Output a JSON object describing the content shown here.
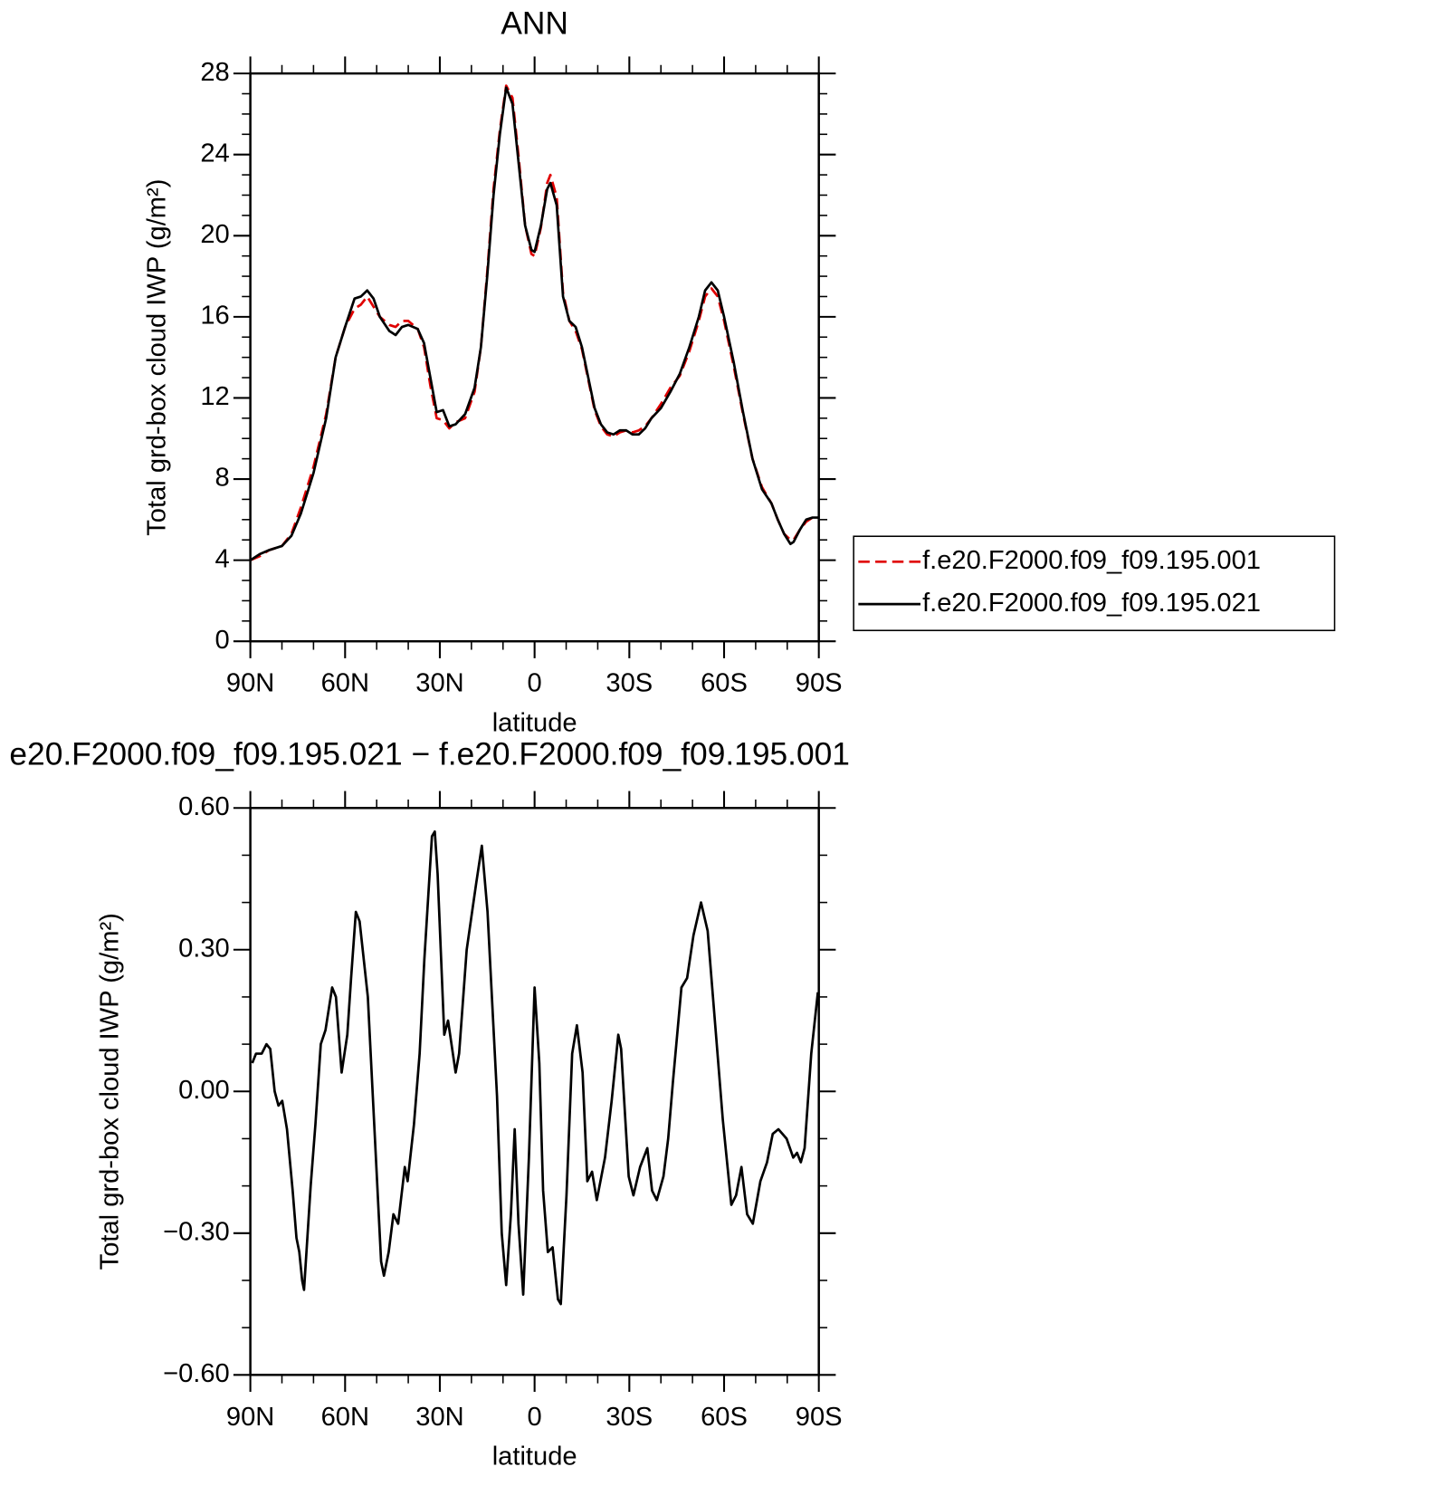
{
  "chart_data": [
    {
      "type": "line",
      "title": "ANN",
      "xlabel": "latitude",
      "ylabel": "Total grd-box cloud IWP (g/m²)",
      "x": [
        90,
        87,
        84,
        80,
        77,
        74,
        70,
        66,
        63,
        60,
        57,
        55,
        53,
        51,
        49,
        46,
        44,
        42,
        40,
        37,
        35,
        33,
        31,
        29,
        27,
        25,
        22,
        19,
        17,
        15,
        13,
        11,
        9,
        7,
        5,
        3,
        1,
        0,
        -2,
        -4,
        -5,
        -7,
        -9,
        -11,
        -13,
        -15,
        -17,
        -19,
        -21,
        -23,
        -25,
        -27,
        -29,
        -31,
        -33,
        -35,
        -37,
        -40,
        -43,
        -46,
        -49,
        -52,
        -54,
        -56,
        -58,
        -60,
        -63,
        -66,
        -69,
        -72,
        -75,
        -77,
        -79,
        -81,
        -82,
        -84,
        -86,
        -88,
        -90
      ],
      "series": [
        {
          "name": "f.e20.F2000.f09_f09.195.001",
          "color": "#e00000",
          "style": "dashed",
          "values": [
            4.0,
            4.2,
            4.5,
            4.7,
            5.3,
            6.6,
            8.6,
            11.2,
            14.0,
            15.5,
            16.4,
            16.6,
            17.0,
            16.5,
            16.0,
            15.6,
            15.5,
            15.8,
            15.8,
            15.4,
            14.5,
            12.6,
            11.0,
            10.9,
            10.5,
            10.8,
            11.0,
            12.3,
            14.5,
            18.2,
            22.3,
            25.2,
            27.4,
            26.8,
            23.8,
            20.5,
            19.1,
            19.0,
            20.4,
            22.6,
            23.0,
            21.9,
            17.2,
            15.8,
            15.3,
            14.4,
            12.9,
            11.4,
            10.6,
            10.2,
            10.1,
            10.3,
            10.4,
            10.3,
            10.4,
            10.6,
            11.0,
            11.7,
            12.5,
            13.1,
            14.3,
            15.8,
            17.0,
            17.4,
            17.0,
            15.8,
            13.6,
            11.2,
            9.0,
            7.6,
            6.8,
            6.0,
            5.3,
            5.0,
            5.0,
            5.5,
            5.9,
            6.1,
            6.1
          ]
        },
        {
          "name": "f.e20.F2000.f09_f09.195.021",
          "color": "#000000",
          "style": "solid",
          "values": [
            4.0,
            4.3,
            4.5,
            4.7,
            5.2,
            6.3,
            8.3,
            11.0,
            14.0,
            15.5,
            16.9,
            17.0,
            17.3,
            16.9,
            16.0,
            15.3,
            15.1,
            15.5,
            15.6,
            15.4,
            14.7,
            13.0,
            11.3,
            11.4,
            10.6,
            10.7,
            11.2,
            12.5,
            14.5,
            18.0,
            22.0,
            25.0,
            27.3,
            26.5,
            23.5,
            20.5,
            19.3,
            19.2,
            20.5,
            22.3,
            22.6,
            21.5,
            17.0,
            15.8,
            15.5,
            14.5,
            13.0,
            11.5,
            10.7,
            10.3,
            10.2,
            10.4,
            10.4,
            10.2,
            10.2,
            10.5,
            11.0,
            11.5,
            12.3,
            13.2,
            14.5,
            16.0,
            17.3,
            17.7,
            17.3,
            16.0,
            13.8,
            11.3,
            9.0,
            7.5,
            6.8,
            6.0,
            5.3,
            4.8,
            4.9,
            5.5,
            6.0,
            6.1,
            6.1
          ]
        }
      ],
      "xlim": [
        90,
        -90
      ],
      "xticks": [
        {
          "value": 90,
          "label": "90N"
        },
        {
          "value": 60,
          "label": "60N"
        },
        {
          "value": 30,
          "label": "30N"
        },
        0,
        {
          "value": -30,
          "label": "30S"
        },
        {
          "value": -60,
          "label": "60S"
        },
        {
          "value": -90,
          "label": "90S"
        }
      ],
      "ylim": [
        0,
        28
      ],
      "yticks": [
        0,
        4,
        8,
        12,
        16,
        20,
        24,
        28
      ],
      "legend": "right"
    },
    {
      "type": "line",
      "title": "e20.F2000.f09_f09.195.021 − f.e20.F2000.f09_f09.195.001",
      "xlabel": "latitude",
      "ylabel": "Total grd-box cloud IWP (g/m²)",
      "x": [
        89.4,
        88.2,
        86.4,
        84.9,
        83.7,
        82.3,
        81.1,
        79.9,
        78.4,
        76.6,
        75.4,
        74.5,
        73.6,
        73.0,
        70.9,
        69.4,
        67.7,
        66.2,
        64.1,
        62.9,
        61.1,
        59.3,
        58.1,
        56.6,
        55.4,
        52.8,
        50.1,
        48.6,
        47.7,
        46.2,
        44.7,
        43.2,
        41.1,
        40.2,
        38.2,
        36.4,
        34.9,
        32.5,
        31.6,
        30.7,
        28.6,
        27.4,
        25.0,
        23.9,
        21.5,
        20.0,
        18.5,
        16.7,
        14.9,
        11.9,
        10.4,
        9.0,
        7.5,
        6.3,
        5.1,
        3.6,
        1.8,
        0,
        -1.5,
        -2.7,
        -4.2,
        -5.7,
        -7.4,
        -8.3,
        -10.1,
        -11.9,
        -13.4,
        -15.2,
        -16.7,
        -18.2,
        -19.7,
        -22.3,
        -24.4,
        -26.5,
        -27.4,
        -29.8,
        -31.3,
        -33.4,
        -35.7,
        -37.2,
        -38.7,
        -40.8,
        -42.3,
        -43.8,
        -46.5,
        -48.3,
        -50.3,
        -52.7,
        -54.8,
        -57.2,
        -59.6,
        -62.3,
        -63.8,
        -65.5,
        -67.3,
        -69.1,
        -71.5,
        -73.6,
        -75.4,
        -77.2,
        -79.8,
        -81.9,
        -83.1,
        -84.3,
        -85.5,
        -87.6,
        -89.7
      ],
      "series": [
        {
          "color": "#000000",
          "style": "solid",
          "values": [
            0.06,
            0.08,
            0.08,
            0.1,
            0.09,
            0,
            -0.03,
            -0.02,
            -0.08,
            -0.21,
            -0.31,
            -0.34,
            -0.4,
            -0.42,
            -0.2,
            -0.07,
            0.1,
            0.13,
            0.22,
            0.2,
            0.04,
            0.12,
            0.24,
            0.38,
            0.36,
            0.2,
            -0.16,
            -0.36,
            -0.39,
            -0.34,
            -0.26,
            -0.28,
            -0.16,
            -0.19,
            -0.07,
            0.08,
            0.28,
            0.54,
            0.55,
            0.46,
            0.12,
            0.15,
            0.04,
            0.08,
            0.3,
            0.37,
            0.44,
            0.52,
            0.38,
            -0.01,
            -0.3,
            -0.41,
            -0.26,
            -0.08,
            -0.28,
            -0.43,
            -0.14,
            0.22,
            0.06,
            -0.21,
            -0.34,
            -0.33,
            -0.44,
            -0.45,
            -0.22,
            0.08,
            0.14,
            0.04,
            -0.19,
            -0.17,
            -0.23,
            -0.14,
            -0.02,
            0.12,
            0.09,
            -0.18,
            -0.22,
            -0.16,
            -0.12,
            -0.21,
            -0.23,
            -0.18,
            -0.1,
            0.02,
            0.22,
            0.24,
            0.33,
            0.4,
            0.34,
            0.14,
            -0.06,
            -0.24,
            -0.22,
            -0.16,
            -0.26,
            -0.28,
            -0.19,
            -0.15,
            -0.09,
            -0.08,
            -0.1,
            -0.14,
            -0.13,
            -0.15,
            -0.12,
            0.08,
            0.21
          ]
        }
      ],
      "xlim": [
        90,
        -90
      ],
      "xticks": [
        {
          "value": 90,
          "label": "90N"
        },
        {
          "value": 60,
          "label": "60N"
        },
        {
          "value": 30,
          "label": "30N"
        },
        0,
        {
          "value": -30,
          "label": "30S"
        },
        {
          "value": -60,
          "label": "60S"
        },
        {
          "value": -90,
          "label": "90S"
        }
      ],
      "ylim": [
        -0.6,
        0.6
      ],
      "yticks": [
        {
          "value": -0.6,
          "label": "−0.60"
        },
        {
          "value": -0.3,
          "label": "−0.30"
        },
        {
          "value": 0,
          "label": "0.00"
        },
        {
          "value": 0.3,
          "label": "0.30"
        },
        {
          "value": 0.6,
          "label": "0.60"
        }
      ]
    }
  ]
}
